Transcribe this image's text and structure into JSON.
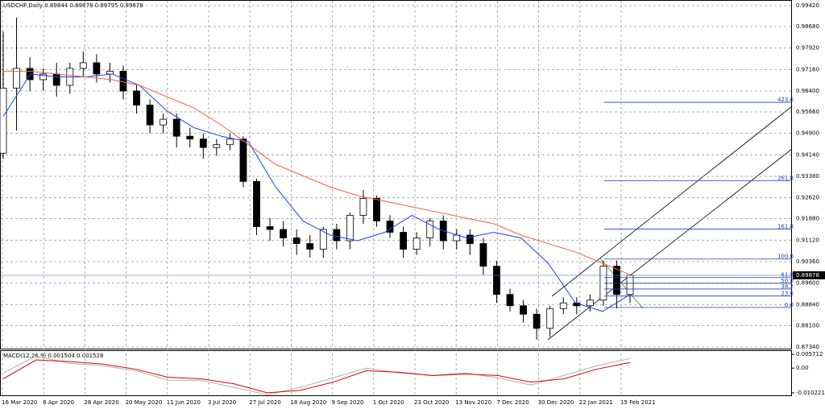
{
  "chart_data": {
    "type": "candlestick",
    "title": "USDCHF,Daily  0.89844 0.89878 0.89795 0.89878",
    "categories": [
      "16 Mar 2020",
      "6 Apr 2020",
      "28 Apr 2020",
      "20 May 2020",
      "11 Jun 2020",
      "3 Jul 2020",
      "27 Jul 2020",
      "18 Aug 2020",
      "9 Sep 2020",
      "1 Oct 2020",
      "23 Oct 2020",
      "13 Nov 2020",
      "7 Dec 2020",
      "30 Dec 2020",
      "22 Jan 2021",
      "15 Feb 2021"
    ],
    "open": [
      0.942,
      0.965,
      0.972,
      0.968,
      0.97,
      0.966,
      0.972,
      0.974,
      0.97,
      0.971,
      0.964,
      0.959,
      0.952,
      0.954,
      0.948,
      0.947,
      0.944,
      0.945,
      0.947,
      0.932,
      0.916,
      0.915,
      0.912,
      0.91,
      0.908,
      0.915,
      0.911,
      0.92,
      0.926,
      0.918,
      0.914,
      0.908,
      0.912,
      0.918,
      0.911,
      0.913,
      0.91,
      0.902,
      0.892,
      0.888,
      0.885,
      0.88,
      0.887,
      0.889,
      0.888,
      0.89,
      0.902,
      0.892
    ],
    "high": [
      0.985,
      0.99,
      0.976,
      0.972,
      0.974,
      0.974,
      0.978,
      0.977,
      0.974,
      0.973,
      0.966,
      0.961,
      0.956,
      0.956,
      0.951,
      0.949,
      0.947,
      0.949,
      0.948,
      0.933,
      0.919,
      0.918,
      0.915,
      0.913,
      0.916,
      0.917,
      0.921,
      0.929,
      0.927,
      0.92,
      0.916,
      0.914,
      0.919,
      0.92,
      0.915,
      0.915,
      0.912,
      0.904,
      0.894,
      0.89,
      0.887,
      0.888,
      0.891,
      0.891,
      0.892,
      0.904,
      0.904,
      0.899
    ],
    "low": [
      0.94,
      0.95,
      0.964,
      0.964,
      0.962,
      0.963,
      0.969,
      0.967,
      0.967,
      0.961,
      0.956,
      0.949,
      0.949,
      0.944,
      0.944,
      0.94,
      0.941,
      0.943,
      0.93,
      0.913,
      0.911,
      0.909,
      0.906,
      0.905,
      0.905,
      0.908,
      0.908,
      0.917,
      0.916,
      0.912,
      0.905,
      0.906,
      0.909,
      0.908,
      0.908,
      0.906,
      0.899,
      0.889,
      0.886,
      0.882,
      0.876,
      0.877,
      0.885,
      0.885,
      0.886,
      0.888,
      0.887,
      0.889
    ],
    "close": [
      0.965,
      0.972,
      0.968,
      0.97,
      0.966,
      0.972,
      0.974,
      0.97,
      0.971,
      0.964,
      0.959,
      0.952,
      0.954,
      0.948,
      0.947,
      0.944,
      0.945,
      0.947,
      0.932,
      0.916,
      0.915,
      0.912,
      0.91,
      0.908,
      0.915,
      0.911,
      0.92,
      0.926,
      0.918,
      0.914,
      0.908,
      0.912,
      0.918,
      0.911,
      0.913,
      0.91,
      0.902,
      0.892,
      0.888,
      0.885,
      0.88,
      0.887,
      0.889,
      0.888,
      0.89,
      0.902,
      0.892,
      0.89878
    ],
    "ma_fast": {
      "color": "#1f3fff",
      "values": [
        0.955,
        0.97,
        0.969,
        0.969,
        0.97,
        0.966,
        0.957,
        0.951,
        0.948,
        0.946,
        0.93,
        0.918,
        0.913,
        0.911,
        0.914,
        0.92,
        0.915,
        0.912,
        0.914,
        0.912,
        0.903,
        0.889,
        0.886,
        0.892
      ]
    },
    "ma_slow": {
      "color": "#f06040",
      "values": [
        0.971,
        0.971,
        0.97,
        0.969,
        0.968,
        0.966,
        0.962,
        0.958,
        0.952,
        0.945,
        0.938,
        0.934,
        0.93,
        0.927,
        0.925,
        0.923,
        0.921,
        0.919,
        0.917,
        0.913,
        0.91,
        0.907,
        0.903,
        0.899
      ]
    },
    "ylim": [
      0.9962,
      0.87283
    ],
    "yticks": [
      {
        "value": 0.9942,
        "label": "0.99420"
      },
      {
        "value": 0.9868,
        "label": "0.98680"
      },
      {
        "value": 0.9792,
        "label": "0.97920"
      },
      {
        "value": 0.9716,
        "label": "0.97160"
      },
      {
        "value": 0.964,
        "label": "0.96400"
      },
      {
        "value": 0.9566,
        "label": "0.95660"
      },
      {
        "value": 0.949,
        "label": "0.94900"
      },
      {
        "value": 0.9414,
        "label": "0.94140"
      },
      {
        "value": 0.9338,
        "label": "0.93380"
      },
      {
        "value": 0.9262,
        "label": "0.92620"
      },
      {
        "value": 0.9188,
        "label": "0.91880"
      },
      {
        "value": 0.9112,
        "label": "0.91120"
      },
      {
        "value": 0.9036,
        "label": "0.90360"
      },
      {
        "value": 0.896,
        "label": "0.89600"
      },
      {
        "value": 0.8884,
        "label": "0.88840"
      },
      {
        "value": 0.881,
        "label": "0.88100"
      },
      {
        "value": 0.8734,
        "label": "0.87340"
      }
    ],
    "current_price": {
      "value": 0.89878,
      "label": "0.89878"
    },
    "fibo": {
      "high": 0.90453,
      "low": 0.88739,
      "levels": [
        423.6,
        {
          "value": 261.8,
          "label": "261.8"
        },
        161.8,
        {
          "value": 100,
          "label": "100.0"
        },
        61.8,
        {
          "value": 50,
          "label": "50.0"
        },
        38.2,
        23.6,
        {
          "value": 0,
          "label": "0.0"
        }
      ]
    },
    "grid": true,
    "macd": {
      "title": "MACD(12,26,9) 0.001504 0.001528",
      "ylim": [
        0.007068,
        -0.011238
      ],
      "yticks": [
        0.005712,
        {
          "value": 0,
          "label": "0.00"
        },
        -0.010221
      ],
      "series": [
        {
          "name": "MACD",
          "color": "#b0b0b0",
          "values": [
            -0.002,
            0.005,
            0.002,
            0.001,
            -0.001,
            -0.005,
            -0.005,
            -0.008,
            -0.011,
            -0.008,
            -0.004,
            0.0,
            -0.002,
            -0.003,
            -0.002,
            -0.004,
            -0.007,
            -0.003,
            0.001,
            0.004
          ]
        },
        {
          "name": "Signal",
          "color": "#e00000",
          "values": [
            -0.0044,
            0.0034,
            0.0027,
            0.0017,
            -0.0004,
            -0.0038,
            -0.0044,
            -0.0065,
            -0.0102,
            -0.0092,
            -0.0058,
            -0.0011,
            -0.0017,
            -0.0031,
            -0.0024,
            -0.0031,
            -0.0058,
            -0.0044,
            -0.0004,
            0.0023
          ]
        }
      ]
    }
  }
}
